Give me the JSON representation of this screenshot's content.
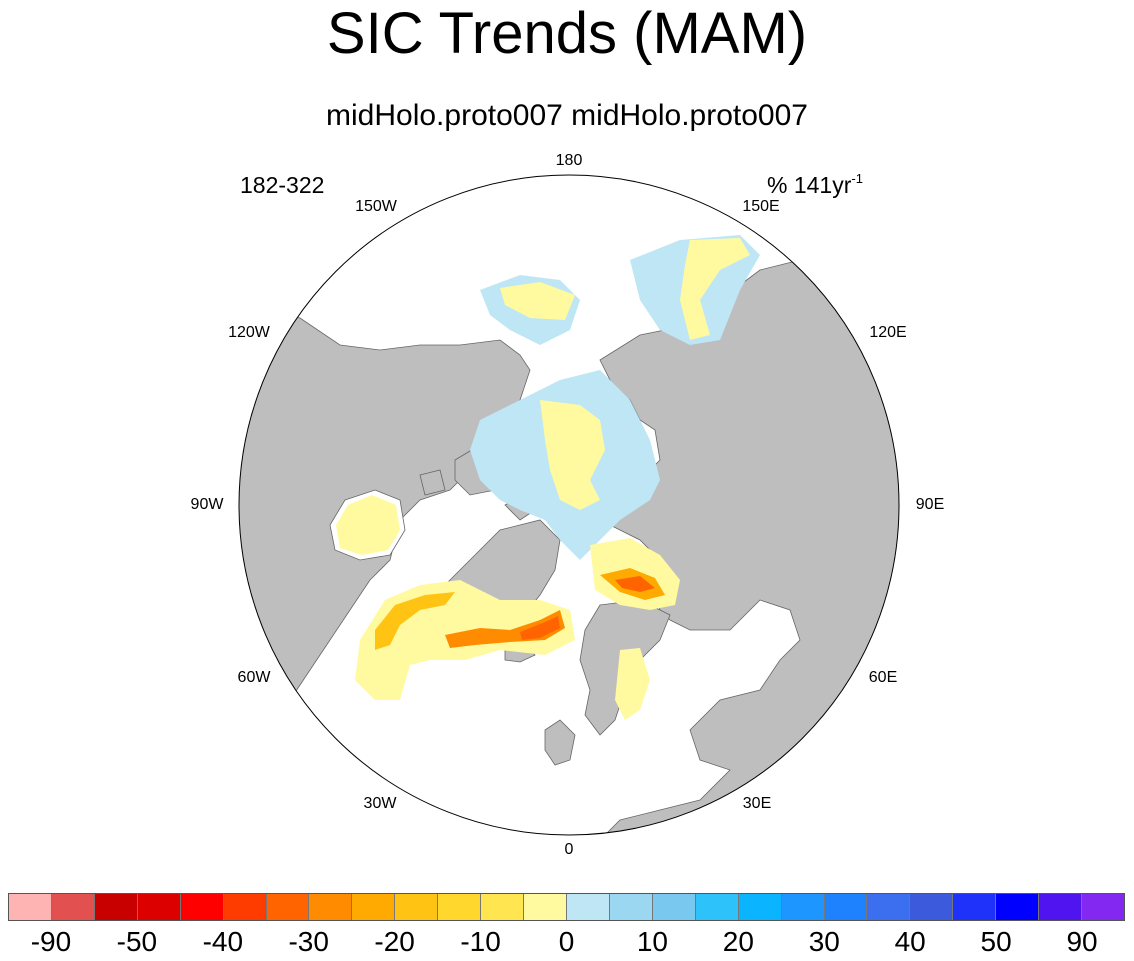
{
  "title": "SIC Trends (MAM)",
  "subtitle": "midHolo.proto007  midHolo.proto007",
  "left_label": "182-322",
  "right_label": {
    "text": "% 141yr",
    "sup": "-1"
  },
  "longitude_labels": [
    "180",
    "150E",
    "120E",
    "90E",
    "60E",
    "30E",
    "0",
    "30W",
    "60W",
    "90W",
    "120W",
    "150W"
  ],
  "colorbar": {
    "colors": [
      "#FFB4B4",
      "#E25050",
      "#C80000",
      "#DC0000",
      "#FF0000",
      "#FF3C00",
      "#FF6400",
      "#FF8C00",
      "#FFAA00",
      "#FFC314",
      "#FFD72D",
      "#FFE650",
      "#FFFAA0",
      "#BEE6F5",
      "#9BD7F0",
      "#78C8F0",
      "#2DC3FA",
      "#0AB4FF",
      "#1E96FF",
      "#1E82FF",
      "#3C6EF0",
      "#3C5ADC",
      "#1E32FA",
      "#0000FF",
      "#5014F0",
      "#8228F0"
    ],
    "labels": [
      "-90",
      "-50",
      "-40",
      "-30",
      "-20",
      "-10",
      "0",
      "10",
      "20",
      "30",
      "40",
      "50",
      "90"
    ]
  },
  "colors": {
    "land": "#BEBEBE",
    "ocean": "#FFFFFF",
    "coast": "#666666"
  }
}
